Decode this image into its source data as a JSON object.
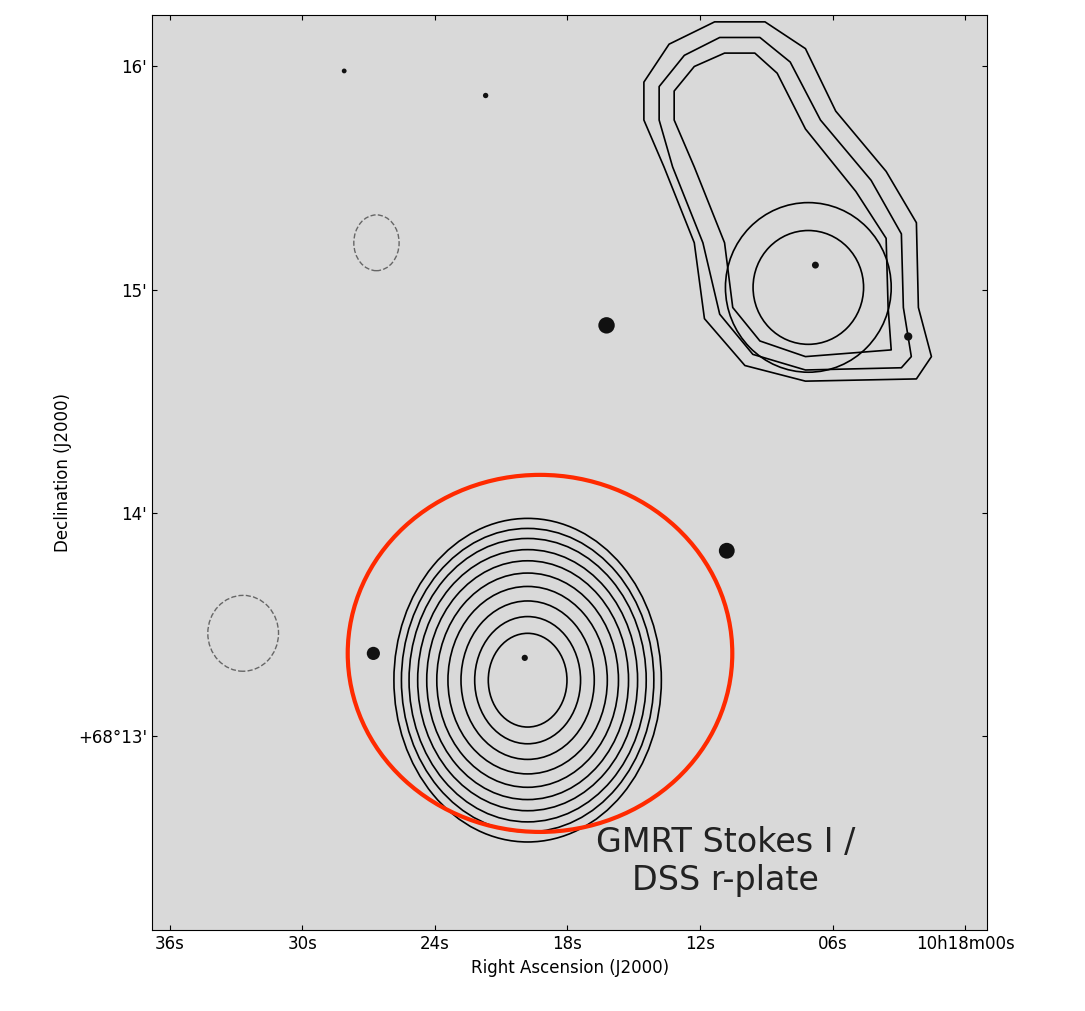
{
  "chart_data": {
    "type": "contour",
    "xlabel": "Right Ascension (J2000)",
    "ylabel": "Declination (J2000)",
    "annotation": "GMRT Stokes I /\nDSS r-plate",
    "xlim": [
      36.8,
      -1.0
    ],
    "ylim": [
      12.13,
      16.23
    ],
    "xticks": [
      {
        "value": 36,
        "label": "36s"
      },
      {
        "value": 30,
        "label": "30s"
      },
      {
        "value": 24,
        "label": "24s"
      },
      {
        "value": 18,
        "label": "18s"
      },
      {
        "value": 12,
        "label": "12s"
      },
      {
        "value": 6,
        "label": "06s"
      },
      {
        "value": 0,
        "label": "10h18m00s"
      }
    ],
    "yticks": [
      {
        "value": 13,
        "label": "+68°13'"
      },
      {
        "value": 14,
        "label": "14'"
      },
      {
        "value": 15,
        "label": "15'"
      },
      {
        "value": 16,
        "label": "16'"
      }
    ],
    "color": "#000000",
    "contour_ellipses": [
      {
        "ra": 19.8,
        "dec": 13.25,
        "widths": [
          12.1,
          11.42,
          10.73,
          9.95,
          9.13,
          8.22,
          7.21,
          6.03,
          4.79,
          3.56
        ],
        "heights": [
          1.45,
          1.36,
          1.27,
          1.17,
          1.07,
          0.96,
          0.84,
          0.71,
          0.57,
          0.42
        ]
      },
      {
        "ra": 7.1,
        "dec": 15.01,
        "widths": [
          7.5,
          5.0
        ],
        "heights": [
          0.76,
          0.51
        ]
      }
    ],
    "contour_polygons": [
      {
        "ra": [
          14.54,
          13.4,
          11.34,
          9.06,
          7.23,
          5.86,
          3.58,
          2.21,
          2.12,
          1.53,
          2.21,
          7.23,
          9.97,
          11.8,
          12.26,
          13.63,
          14.54
        ],
        "dec": [
          15.93,
          16.1,
          16.2,
          16.2,
          16.08,
          15.8,
          15.53,
          15.3,
          14.92,
          14.7,
          14.6,
          14.59,
          14.66,
          14.87,
          15.21,
          15.55,
          15.76
        ]
      },
      {
        "ra": [
          13.85,
          12.71,
          11.11,
          9.29,
          7.92,
          6.55,
          4.26,
          2.89,
          2.8,
          2.44,
          2.89,
          7.23,
          9.61,
          11.11,
          11.87,
          13.24,
          13.85
        ],
        "dec": [
          15.91,
          16.05,
          16.13,
          16.13,
          16.02,
          15.76,
          15.49,
          15.25,
          14.92,
          14.7,
          14.65,
          14.64,
          14.71,
          14.89,
          15.21,
          15.55,
          15.76
        ]
      },
      {
        "ra": [
          13.17,
          12.26,
          10.89,
          9.52,
          8.51,
          7.23,
          4.95,
          3.58,
          3.49,
          3.35,
          7.23,
          9.29,
          10.52,
          10.89,
          12.26,
          13.17
        ],
        "dec": [
          15.89,
          16.0,
          16.06,
          16.06,
          15.97,
          15.72,
          15.44,
          15.23,
          14.92,
          14.73,
          14.7,
          14.77,
          14.92,
          15.21,
          15.55,
          15.76
        ]
      }
    ],
    "stars": {
      "ra": [
        16.23,
        10.79,
        26.78,
        6.78,
        2.58,
        19.93,
        28.1,
        21.7
      ],
      "dec": [
        14.84,
        13.83,
        13.37,
        15.11,
        14.79,
        13.35,
        15.98,
        15.87
      ],
      "size": [
        140,
        130,
        90,
        25,
        35,
        20,
        12,
        15
      ]
    },
    "beams": [
      {
        "ra": 26.64,
        "dec": 15.21,
        "width": 2.05,
        "height": 0.25
      },
      {
        "ra": 32.67,
        "dec": 13.46,
        "width": 3.2,
        "height": 0.34
      }
    ],
    "highlight": {
      "ra": 19.24,
      "dec": 13.37,
      "width": 17.4,
      "height": 1.6,
      "color": "#ff2a00"
    }
  }
}
